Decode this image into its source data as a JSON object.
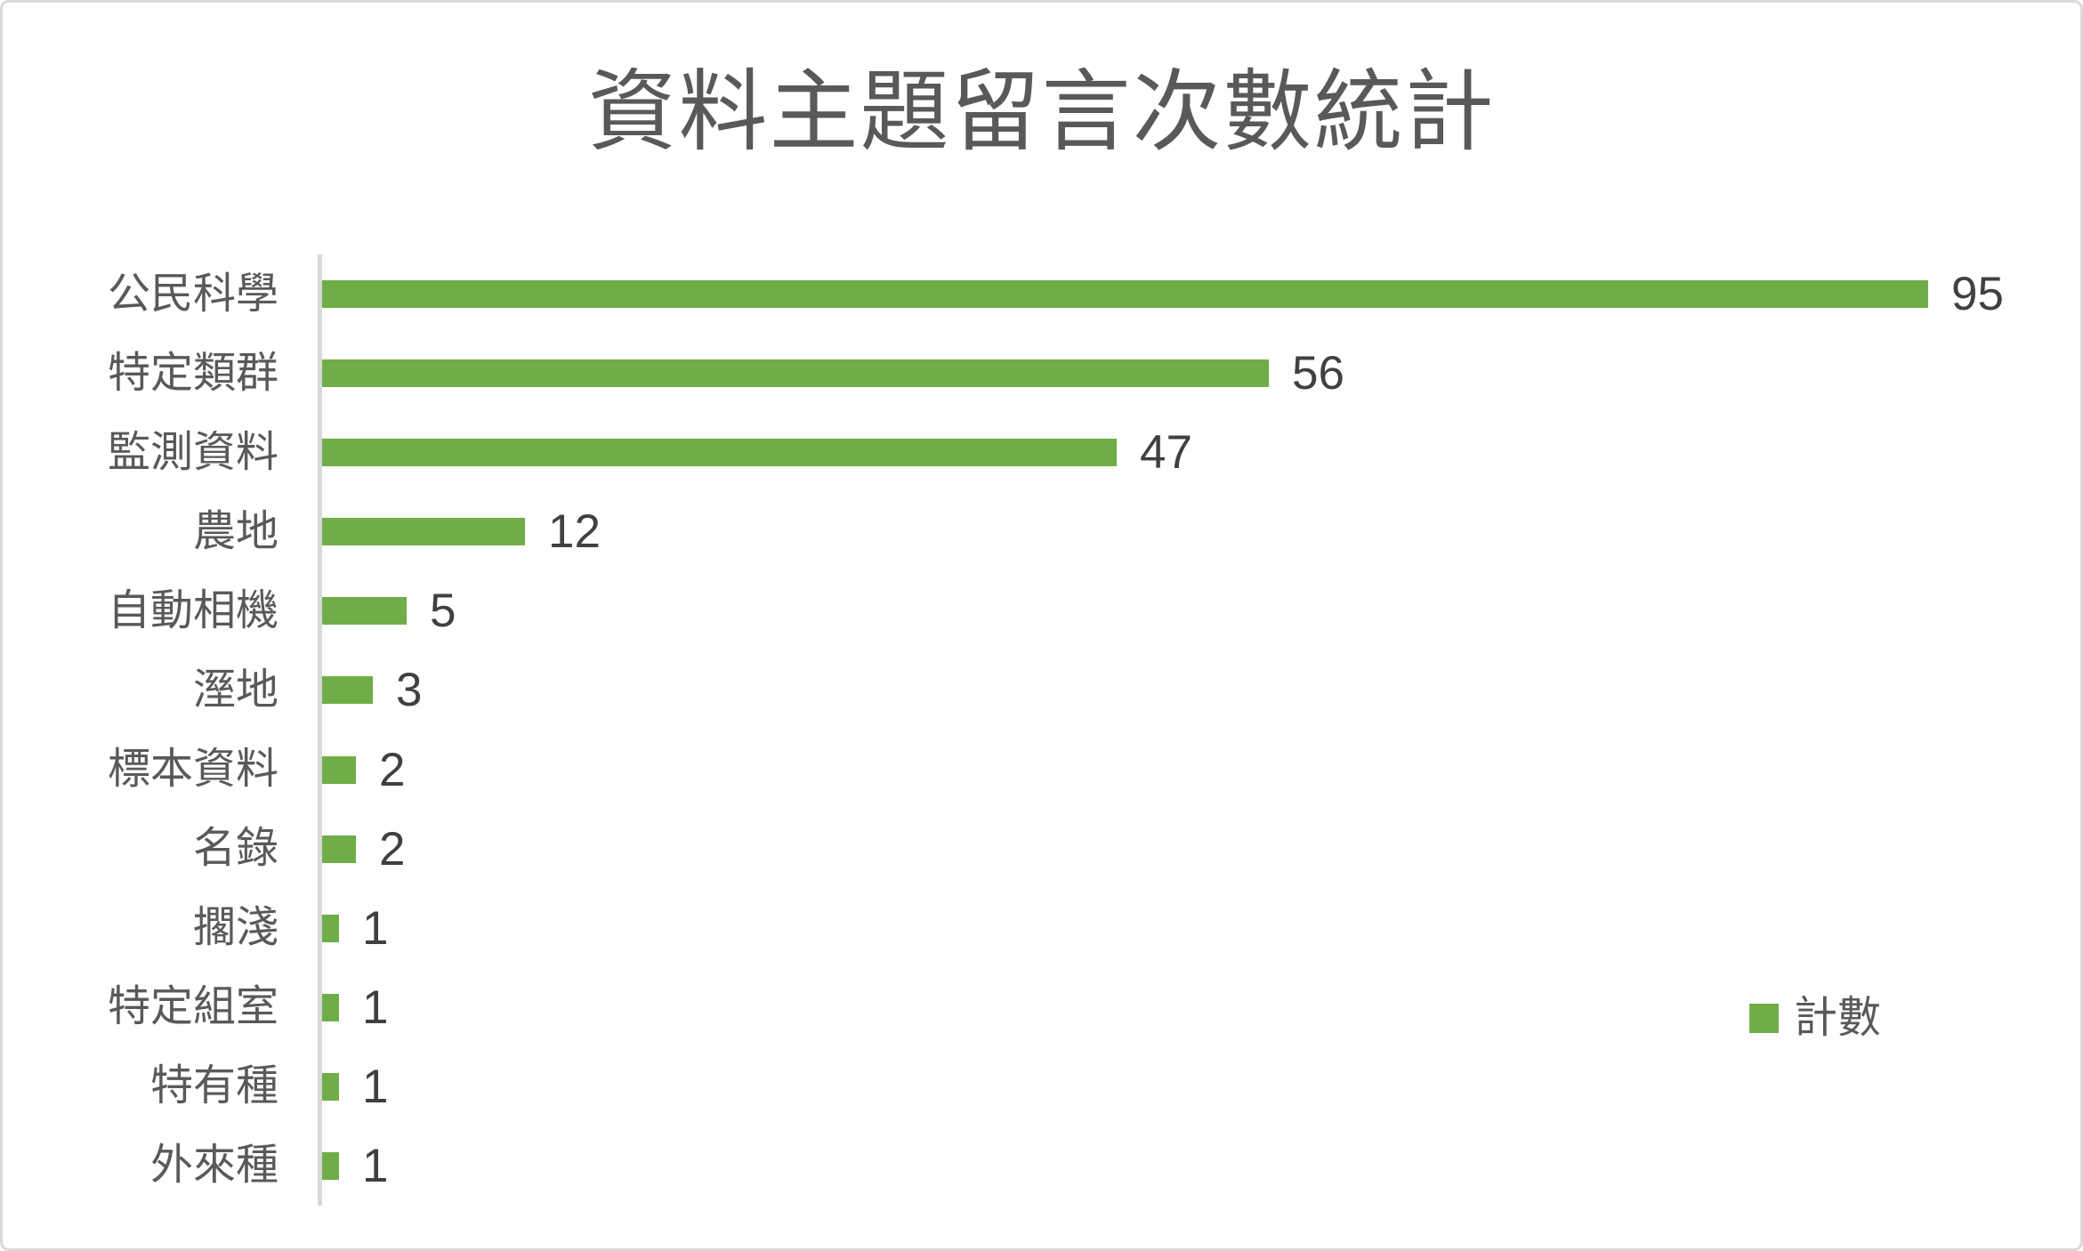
{
  "chart_data": {
    "type": "bar",
    "orientation": "horizontal",
    "title": "資料主題留言次數統計",
    "categories": [
      "公民科學",
      "特定類群",
      "監測資料",
      "農地",
      "自動相機",
      "溼地",
      "標本資料",
      "名錄",
      "擱淺",
      "特定組室",
      "特有種",
      "外來種"
    ],
    "values": [
      95,
      56,
      47,
      12,
      5,
      3,
      2,
      2,
      1,
      1,
      1,
      1
    ],
    "series_name": "計數",
    "xlim": [
      0,
      100
    ],
    "grid": false,
    "data_labels": true,
    "legend": {
      "label": "計數",
      "position": "right-middle"
    },
    "bar_color": "#70ad47"
  },
  "colors": {
    "bar": "#70ad47",
    "title_text": "#595959",
    "category_text": "#595959",
    "value_text": "#404040",
    "axis_line": "#d9d9d9",
    "card_border": "#d9d9d9",
    "background": "#ffffff"
  }
}
